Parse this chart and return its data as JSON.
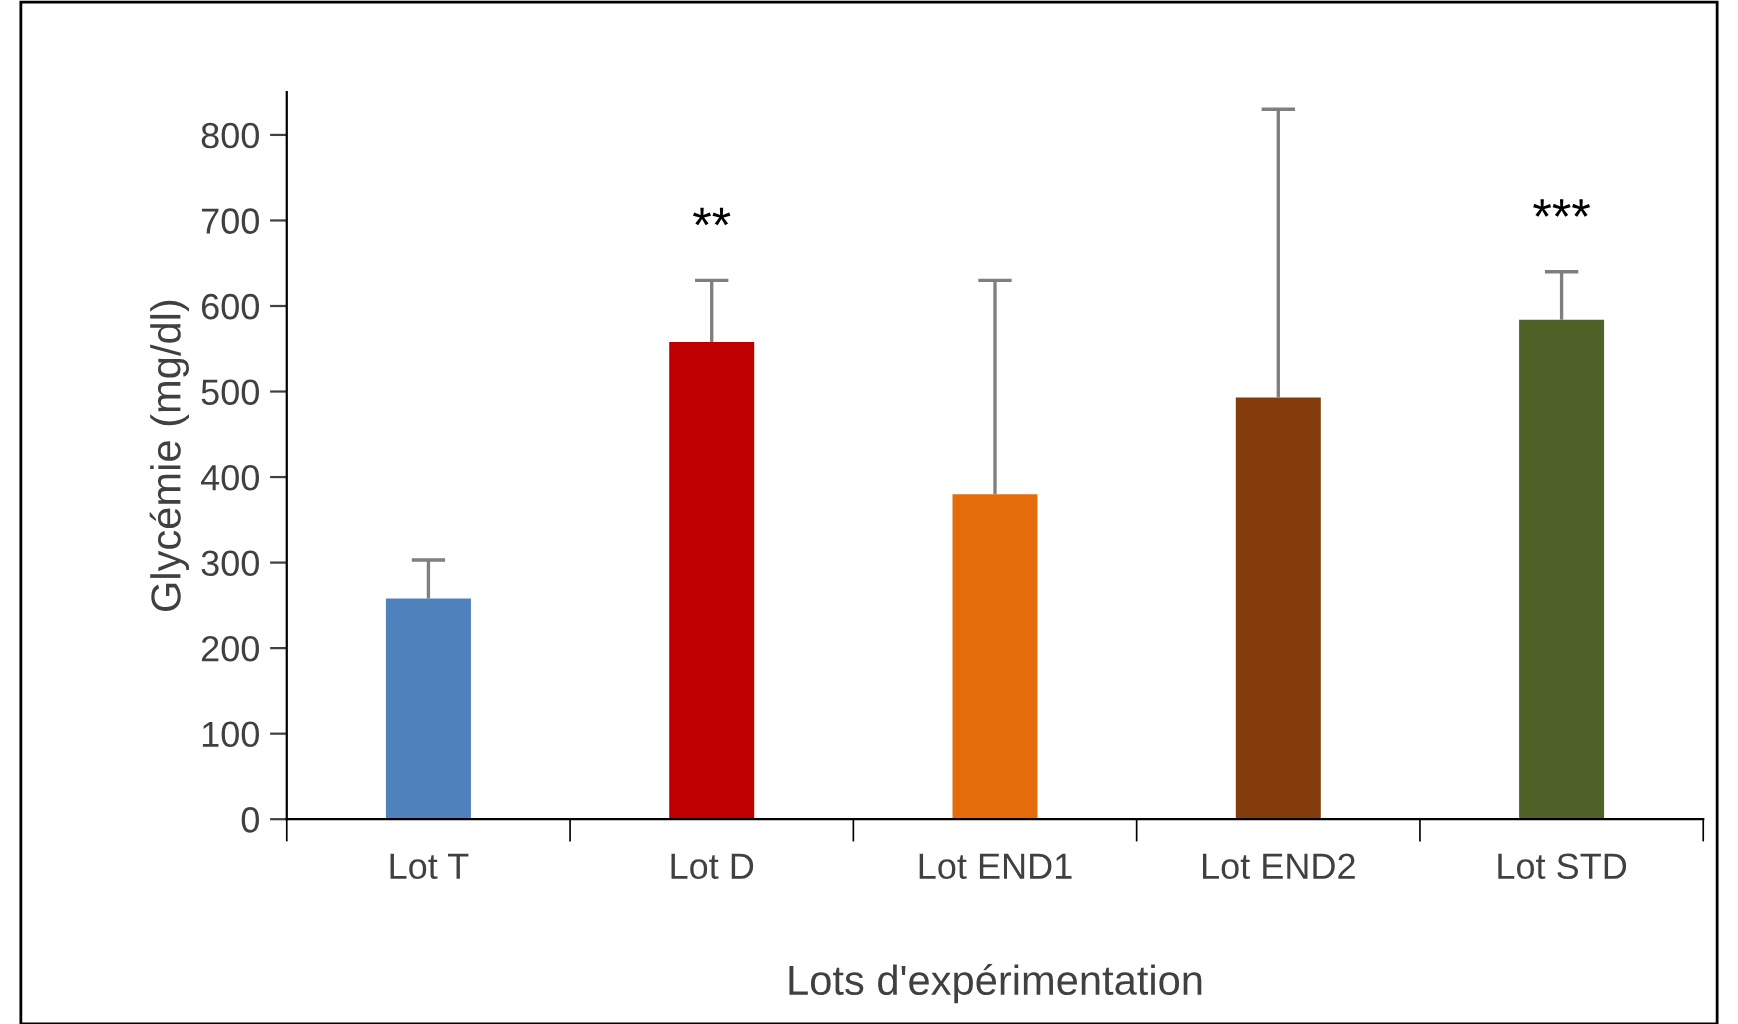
{
  "chart_data": {
    "type": "bar",
    "xlabel": "Lots d'expérimentation",
    "ylabel": "Glycémie (mg/dl)",
    "categories": [
      "Lot T",
      "Lot D",
      "Lot END1",
      "Lot END2",
      "Lot STD"
    ],
    "values": [
      258,
      558,
      380,
      493,
      584
    ],
    "colors": [
      "#4f81bd",
      "#c00000",
      "#e46c0a",
      "#843c0c",
      "#4f6228"
    ],
    "errors": [
      [
        258,
        303
      ],
      [
        558,
        630
      ],
      [
        380,
        630
      ],
      [
        493,
        830
      ],
      [
        584,
        640
      ]
    ],
    "ylim": [
      0,
      850
    ],
    "yticks": [
      0,
      100,
      200,
      300,
      400,
      500,
      600,
      700,
      800
    ],
    "grid": false,
    "legend": false,
    "annotations": [
      {
        "text": "**",
        "x": "Lot D",
        "y": 630
      },
      {
        "text": "***",
        "x": "Lot STD",
        "y": 640
      }
    ]
  }
}
